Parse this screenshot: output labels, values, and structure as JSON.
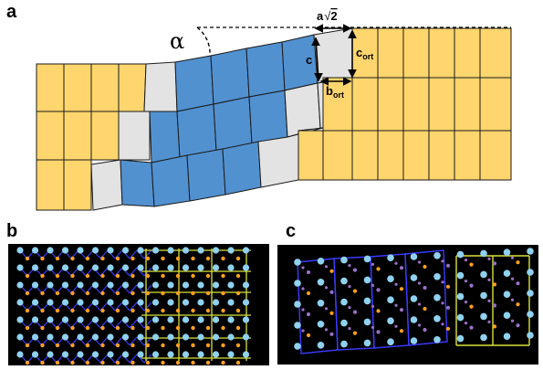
{
  "panels": {
    "a": "a",
    "b": "b",
    "c": "c"
  },
  "labels": {
    "alpha": "α",
    "a_sqrt2_a": "a",
    "a_sqrt2_root": "√",
    "a_sqrt2_n": "2",
    "c": "c",
    "c_ort": "c",
    "c_ort_sub": "ort",
    "b_ort": "b",
    "b_ort_sub": "ort"
  },
  "colors": {
    "yellow": "#FFD56E",
    "blue": "#5291D0",
    "gray": "#E3E3E3",
    "outline": "#1a1a1a",
    "black_bg": "#000000",
    "atom_cyan": "#8fd1f0",
    "atom_orange": "#ffa01e",
    "atom_purple": "#9b6fc9",
    "bond_blue": "#3b3bff",
    "bond_yellow": "#d9e23a"
  }
}
